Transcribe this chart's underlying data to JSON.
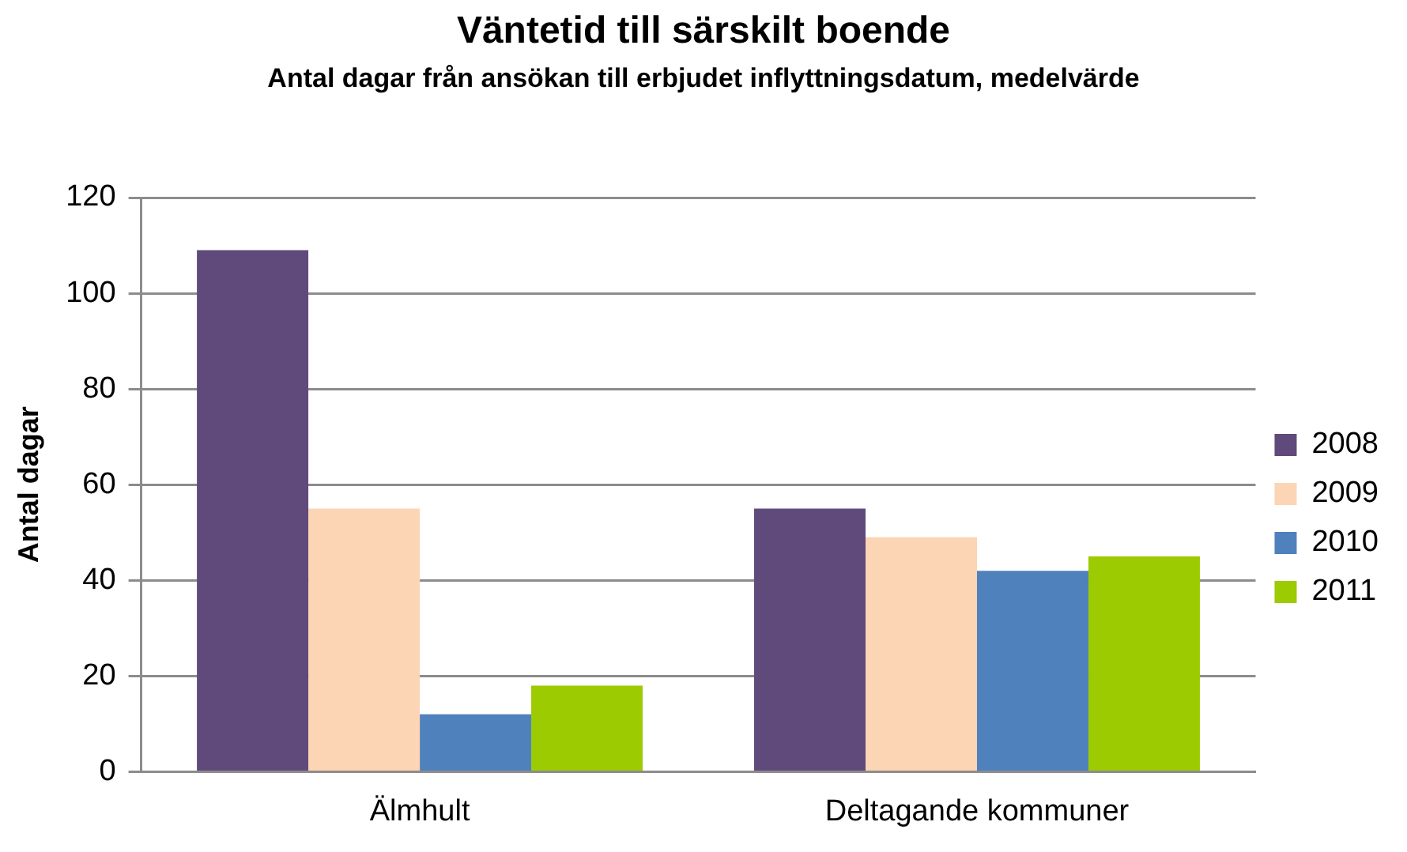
{
  "chart_data": {
    "type": "bar",
    "title": "Väntetid till särskilt boende",
    "subtitle": "Antal dagar från ansökan till erbjudet inflyttningsdatum, medelvärde",
    "ylabel": "Antal dagar",
    "categories": [
      "Älmhult",
      "Deltagande kommuner"
    ],
    "series": [
      {
        "name": "2008",
        "color": "#604a7b",
        "values": [
          109,
          55
        ]
      },
      {
        "name": "2009",
        "color": "#fcd5b5",
        "values": [
          55,
          49
        ]
      },
      {
        "name": "2010",
        "color": "#4f81bd",
        "values": [
          12,
          42
        ]
      },
      {
        "name": "2011",
        "color": "#9bcb00",
        "values": [
          18,
          45
        ]
      }
    ],
    "ylim": [
      0,
      120
    ],
    "yticks": [
      0,
      20,
      40,
      60,
      80,
      100,
      120
    ],
    "grid": "y",
    "legend": "right"
  }
}
